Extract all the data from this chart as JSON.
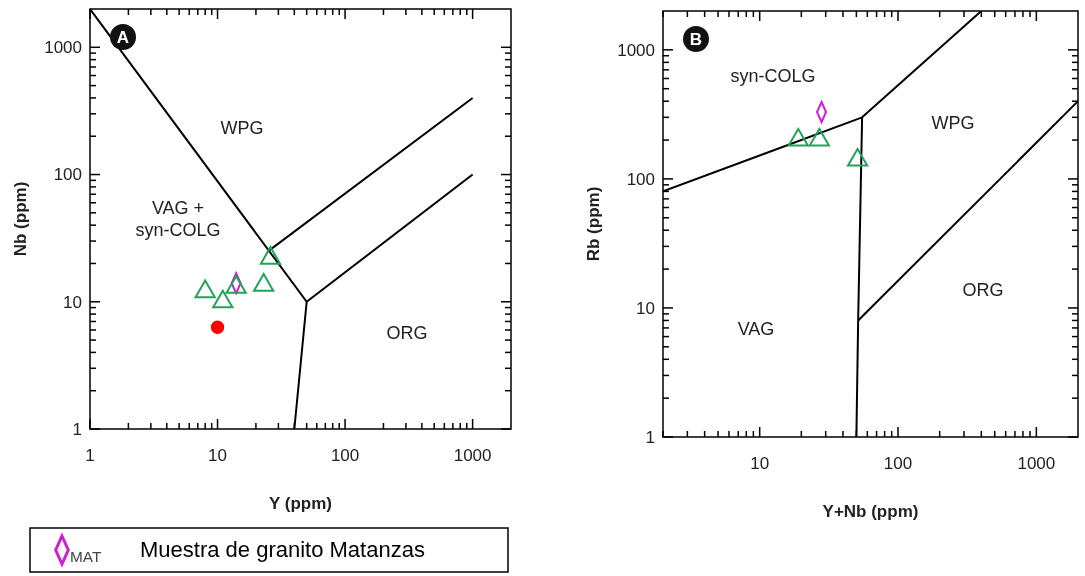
{
  "chart_data": [
    {
      "type": "scatter",
      "title": "A",
      "xlabel": "Y (ppm)",
      "legend_title": "$_{MAT}$",
      "ylabel": "Nb (ppm)",
      "log": "xy",
      "legend": "bottom",
      "xlim": [
        1,
        2000
      ],
      "ylim": [
        1,
        2000
      ],
      "xticks": [
        1,
        {
          "value": 2,
          "label": null
        },
        {
          "value": 3,
          "label": null
        },
        {
          "value": 4,
          "label": null
        },
        {
          "value": 5,
          "label": null
        },
        {
          "value": 6,
          "label": null
        },
        {
          "value": 7,
          "label": null
        },
        {
          "value": 8,
          "label": null
        },
        {
          "value": 9,
          "label": null
        },
        10,
        {
          "value": 20,
          "label": null
        },
        {
          "value": 30,
          "label": null
        },
        {
          "value": 40,
          "label": null
        },
        {
          "value": 50,
          "label": null
        },
        {
          "value": 60,
          "label": null
        },
        {
          "value": 70,
          "label": null
        },
        {
          "value": 80,
          "label": null
        },
        {
          "value": 90,
          "label": null
        },
        100,
        {
          "value": 200,
          "label": null
        },
        {
          "value": 300,
          "label": null
        },
        {
          "value": 400,
          "label": null
        },
        {
          "value": 500,
          "label": null
        },
        {
          "value": 600,
          "label": null
        },
        {
          "value": 700,
          "label": null
        },
        {
          "value": 800,
          "label": null
        },
        {
          "value": 900,
          "label": null
        },
        1000
      ],
      "yticks": [
        1,
        {
          "value": 2,
          "label": null
        },
        {
          "value": 3,
          "label": null
        },
        {
          "value": 4,
          "label": null
        },
        {
          "value": 5,
          "label": null
        },
        {
          "value": 6,
          "label": null
        },
        {
          "value": 7,
          "label": null
        },
        {
          "value": 8,
          "label": null
        },
        {
          "value": 9,
          "label": null
        },
        10,
        {
          "value": 20,
          "label": null
        },
        {
          "value": 30,
          "label": null
        },
        {
          "value": 40,
          "label": null
        },
        {
          "value": 50,
          "label": null
        },
        {
          "value": 60,
          "label": null
        },
        {
          "value": 70,
          "label": null
        },
        {
          "value": 80,
          "label": null
        },
        {
          "value": 90,
          "label": null
        },
        100,
        {
          "value": 200,
          "label": null
        },
        {
          "value": 300,
          "label": null
        },
        {
          "value": 400,
          "label": null
        },
        {
          "value": 500,
          "label": null
        },
        {
          "value": 600,
          "label": null
        },
        {
          "value": 700,
          "label": null
        },
        {
          "value": 800,
          "label": null
        },
        {
          "value": 900,
          "label": null
        },
        1000
      ],
      "series": [
        {
          "type": "line",
          "color": "#000000",
          "marker": "none",
          "x": [
            1,
            50,
            40
          ],
          "values": [
            2000,
            10,
            1
          ]
        },
        {
          "type": "line",
          "color": "#000000",
          "marker": "none",
          "x": [
            25,
            1000
          ],
          "values": [
            25,
            400
          ]
        },
        {
          "type": "line",
          "color": "#000000",
          "marker": "none",
          "x": [
            50,
            1000
          ],
          "values": [
            10,
            100
          ]
        },
        {
          "color": "#ff0000",
          "marker": "circle",
          "x": [
            10
          ],
          "values": [
            6.3
          ]
        },
        {
          "name": "Muestra de granito Matanzas",
          "color": "#cc22cc",
          "marker": "diamond",
          "x": [
            14
          ],
          "values": [
            14
          ]
        },
        {
          "color": "#22a35a",
          "marker": "triangle",
          "x": [
            8,
            11,
            14,
            23,
            26
          ],
          "values": [
            12,
            10,
            13,
            13.5,
            22
          ]
        }
      ],
      "annotations": [
        "WPG",
        "VAG +\nsyn-COLG",
        "ORG"
      ]
    },
    {
      "type": "scatter",
      "title": "B",
      "xlabel": "Y+Nb (ppm)",
      "ylabel": "Rb (ppm)",
      "log": "xy",
      "xlim": [
        2,
        2000
      ],
      "ylim": [
        1,
        2000
      ],
      "xticks": [
        {
          "value": 2,
          "label": null
        },
        {
          "value": 3,
          "label": null
        },
        {
          "value": 4,
          "label": null
        },
        {
          "value": 5,
          "label": null
        },
        {
          "value": 6,
          "label": null
        },
        {
          "value": 7,
          "label": null
        },
        {
          "value": 8,
          "label": null
        },
        {
          "value": 9,
          "label": null
        },
        10,
        {
          "value": 20,
          "label": null
        },
        {
          "value": 30,
          "label": null
        },
        {
          "value": 40,
          "label": null
        },
        {
          "value": 50,
          "label": null
        },
        {
          "value": 60,
          "label": null
        },
        {
          "value": 70,
          "label": null
        },
        {
          "value": 80,
          "label": null
        },
        {
          "value": 90,
          "label": null
        },
        100,
        {
          "value": 200,
          "label": null
        },
        {
          "value": 300,
          "label": null
        },
        {
          "value": 400,
          "label": null
        },
        {
          "value": 500,
          "label": null
        },
        {
          "value": 600,
          "label": null
        },
        {
          "value": 700,
          "label": null
        },
        {
          "value": 800,
          "label": null
        },
        {
          "value": 900,
          "label": null
        },
        1000
      ],
      "yticks": [
        1,
        {
          "value": 2,
          "label": null
        },
        {
          "value": 3,
          "label": null
        },
        {
          "value": 4,
          "label": null
        },
        {
          "value": 5,
          "label": null
        },
        {
          "value": 6,
          "label": null
        },
        {
          "value": 7,
          "label": null
        },
        {
          "value": 8,
          "label": null
        },
        {
          "value": 9,
          "label": null
        },
        10,
        {
          "value": 20,
          "label": null
        },
        {
          "value": 30,
          "label": null
        },
        {
          "value": 40,
          "label": null
        },
        {
          "value": 50,
          "label": null
        },
        {
          "value": 60,
          "label": null
        },
        {
          "value": 70,
          "label": null
        },
        {
          "value": 80,
          "label": null
        },
        {
          "value": 90,
          "label": null
        },
        100,
        {
          "value": 200,
          "label": null
        },
        {
          "value": 300,
          "label": null
        },
        {
          "value": 400,
          "label": null
        },
        {
          "value": 500,
          "label": null
        },
        {
          "value": 600,
          "label": null
        },
        {
          "value": 700,
          "label": null
        },
        {
          "value": 800,
          "label": null
        },
        {
          "value": 900,
          "label": null
        },
        1000
      ],
      "series": [
        {
          "type": "line",
          "color": "#000000",
          "marker": "none",
          "x": [
            2,
            55,
            400
          ],
          "values": [
            80,
            300,
            2000
          ]
        },
        {
          "type": "line",
          "color": "#000000",
          "marker": "none",
          "x": [
            55,
            51.5,
            50
          ],
          "values": [
            300,
            8,
            1
          ]
        },
        {
          "type": "line",
          "color": "#000000",
          "marker": "none",
          "x": [
            51.5,
            2000
          ],
          "values": [
            8,
            400
          ]
        },
        {
          "color": "#cc22cc",
          "marker": "diamond",
          "x": [
            28
          ],
          "values": [
            330
          ]
        },
        {
          "color": "#22a35a",
          "marker": "triangle",
          "x": [
            19,
            27,
            51
          ],
          "values": [
            200,
            200,
            140
          ]
        }
      ],
      "annotations": [
        "syn-COLG",
        "WPG",
        "ORG",
        "VAG"
      ]
    }
  ]
}
